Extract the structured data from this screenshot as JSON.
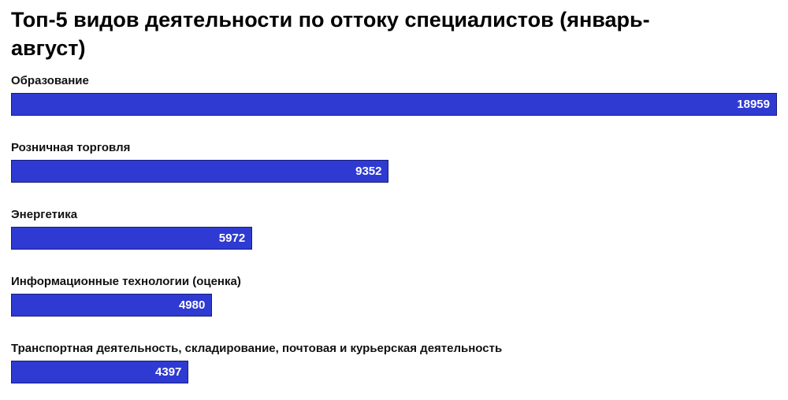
{
  "title": "Топ-5 видов деятельности по оттоку специалистов (январь-август)",
  "colors": {
    "background": "#ffffff",
    "bar_fill": "#2e3ad2",
    "bar_border": "#1a1e78",
    "label_text": "#111111",
    "value_text": "#ffffff",
    "title_text": "#000000"
  },
  "chart_data": {
    "type": "bar",
    "orientation": "horizontal",
    "title": "Топ-5 видов деятельности по оттоку специалистов (январь-август)",
    "categories": [
      "Образование",
      "Розничная торговля",
      "Энергетика",
      "Информационные технологии (оценка)",
      "Транспортная деятельность, складирование, почтовая и курьерская деятельность"
    ],
    "values": [
      18959,
      9352,
      5972,
      4980,
      4397
    ],
    "xlim": [
      0,
      18959
    ],
    "grid": false,
    "legend": false,
    "value_labels": "inside-right"
  }
}
